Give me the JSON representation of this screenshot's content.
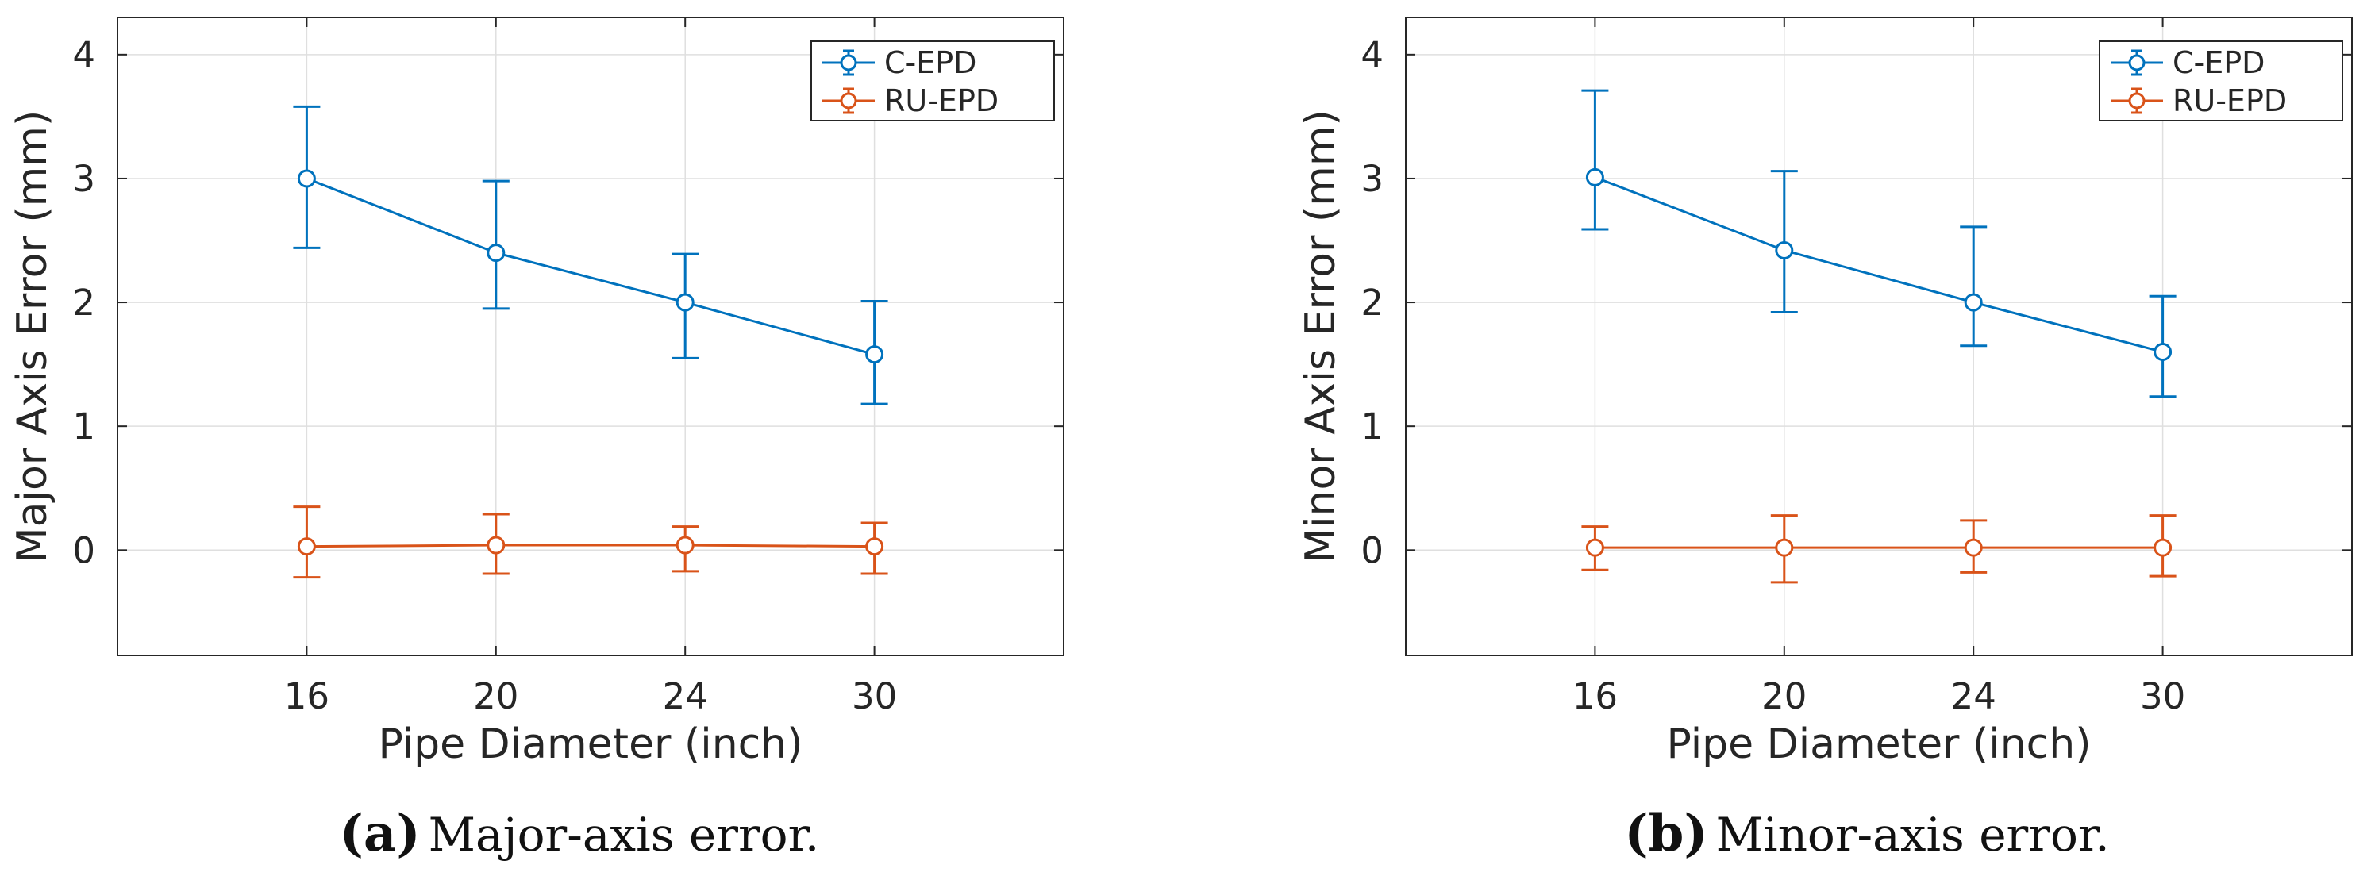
{
  "colors": {
    "c_epd": "#0072BD",
    "ru_epd": "#D95319",
    "axis": "#262626",
    "grid": "#dfdfdf"
  },
  "chart_data": [
    {
      "type": "line",
      "panel": "a",
      "caption_label": "(a)",
      "caption_text": "Major-axis error.",
      "xlabel": "Pipe Diameter (inch)",
      "ylabel": "Major Axis Error (mm)",
      "categories": [
        "16",
        "20",
        "24",
        "30"
      ],
      "xlim": [
        0,
        5
      ],
      "ylim": [
        -0.85,
        4.3
      ],
      "yticks": [
        "0",
        "1",
        "2",
        "3",
        "4"
      ],
      "grid": true,
      "legend_position": "top-right",
      "series": [
        {
          "name": "C-EPD",
          "values": [
            3.0,
            2.4,
            2.0,
            1.58
          ],
          "err_low": [
            2.44,
            1.95,
            1.55,
            1.18
          ],
          "err_high": [
            3.58,
            2.98,
            2.39,
            2.01
          ]
        },
        {
          "name": "RU-EPD",
          "values": [
            0.03,
            0.04,
            0.04,
            0.03
          ],
          "err_low": [
            -0.22,
            -0.19,
            -0.17,
            -0.19
          ],
          "err_high": [
            0.35,
            0.29,
            0.19,
            0.22
          ]
        }
      ]
    },
    {
      "type": "line",
      "panel": "b",
      "caption_label": "(b)",
      "caption_text": "Minor-axis error.",
      "xlabel": "Pipe Diameter (inch)",
      "ylabel": "Minor Axis Error (mm)",
      "categories": [
        "16",
        "20",
        "24",
        "30"
      ],
      "xlim": [
        0,
        5
      ],
      "ylim": [
        -0.85,
        4.3
      ],
      "yticks": [
        "0",
        "1",
        "2",
        "3",
        "4"
      ],
      "grid": true,
      "legend_position": "top-right",
      "series": [
        {
          "name": "C-EPD",
          "values": [
            3.01,
            2.42,
            2.0,
            1.6
          ],
          "err_low": [
            2.59,
            1.92,
            1.65,
            1.24
          ],
          "err_high": [
            3.71,
            3.06,
            2.61,
            2.05
          ]
        },
        {
          "name": "RU-EPD",
          "values": [
            0.02,
            0.02,
            0.02,
            0.02
          ],
          "err_low": [
            -0.16,
            -0.26,
            -0.18,
            -0.21
          ],
          "err_high": [
            0.19,
            0.28,
            0.24,
            0.28
          ]
        }
      ]
    }
  ]
}
